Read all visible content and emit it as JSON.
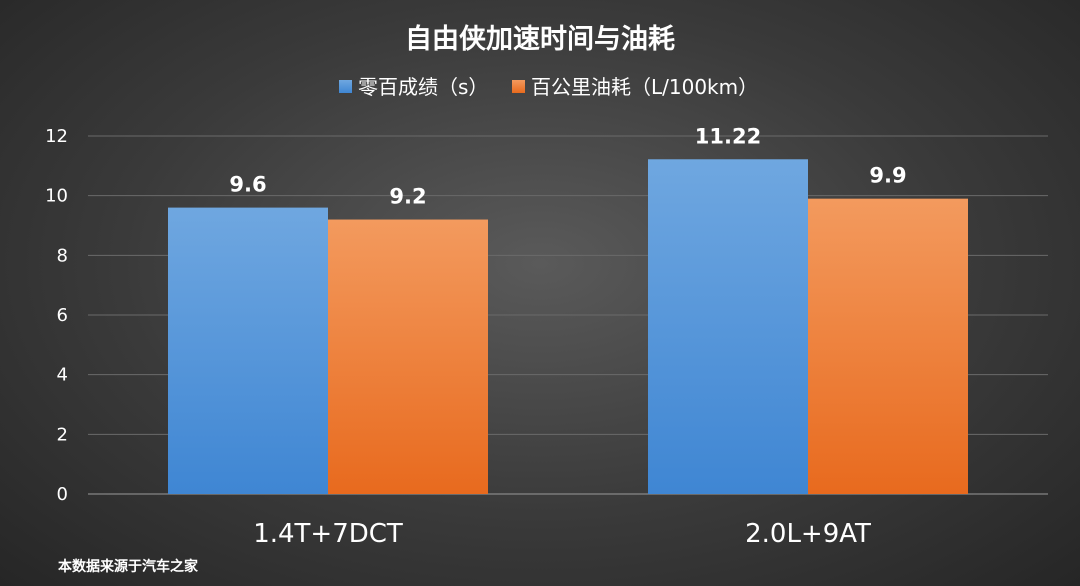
{
  "chart_data": {
    "type": "bar",
    "title": "自由侠加速时间与油耗",
    "categories": [
      "1.4T+7DCT",
      "2.0L+9AT"
    ],
    "series": [
      {
        "name": "零百成绩（s）",
        "values": [
          9.6,
          11.22
        ],
        "labels": [
          "9.6",
          "11.22"
        ],
        "color_top": "#6fa7e0",
        "color_bottom": "#3f86d3"
      },
      {
        "name": "百公里油耗（L/100km）",
        "values": [
          9.2,
          9.9
        ],
        "labels": [
          "9.2",
          "9.9"
        ],
        "color_top": "#f39a5e",
        "color_bottom": "#e86a1e"
      }
    ],
    "ylim": [
      0,
      12
    ],
    "yticks": [
      0,
      2,
      4,
      6,
      8,
      10,
      12
    ],
    "grid": true,
    "legend_position": "top-center"
  },
  "footnote": "本数据来源于汽车之家"
}
